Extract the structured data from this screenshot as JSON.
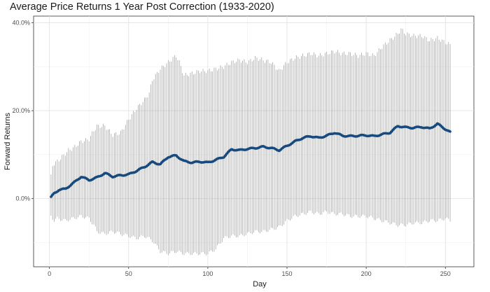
{
  "chart_data": {
    "type": "line",
    "title": "Average Price Returns 1 Year Post Correction (1933-2020)",
    "xlabel": "Day",
    "ylabel": "Forward Returns",
    "xlim": [
      -10,
      268
    ],
    "ylim": [
      -15.5,
      41.5
    ],
    "x_ticks": [
      0,
      50,
      100,
      150,
      200,
      250
    ],
    "y_ticks": [
      {
        "value": 0,
        "label": "0.0%"
      },
      {
        "value": 20,
        "label": "20.0%"
      },
      {
        "value": 40,
        "label": "40.0%"
      }
    ],
    "y_minor_ticks": [
      -10,
      10,
      30
    ],
    "x_minor_ticks": [
      25,
      75,
      125,
      175,
      225
    ],
    "grid": true,
    "days": [
      1,
      253
    ],
    "series": [
      {
        "type": "line",
        "color": "#174a7e",
        "x": [
          1,
          3,
          6,
          10,
          15,
          20,
          25,
          30,
          35,
          40,
          45,
          50,
          55,
          60,
          65,
          70,
          75,
          80,
          85,
          90,
          95,
          100,
          105,
          110,
          115,
          120,
          125,
          130,
          135,
          140,
          145,
          150,
          155,
          160,
          165,
          170,
          175,
          180,
          185,
          190,
          195,
          200,
          205,
          210,
          215,
          220,
          225,
          230,
          235,
          240,
          245,
          250,
          253
        ],
        "y": [
          0.3,
          1.2,
          2.0,
          2.2,
          3.5,
          5.0,
          4.2,
          4.8,
          5.8,
          5.0,
          5.3,
          5.5,
          6.3,
          7.2,
          8.3,
          7.8,
          9.5,
          9.8,
          8.5,
          8.2,
          8.4,
          8.2,
          8.8,
          9.5,
          11.2,
          11.0,
          11.3,
          11.5,
          11.8,
          11.5,
          11.0,
          12.0,
          13.0,
          13.8,
          14.2,
          13.8,
          14.3,
          15.0,
          14.3,
          14.2,
          14.3,
          14.4,
          14.2,
          14.6,
          15.0,
          16.5,
          16.2,
          16.1,
          16.3,
          15.9,
          17.0,
          15.8,
          15.1
        ]
      },
      {
        "type": "errorbar_upper",
        "color": "#9a9a9a",
        "x": [
          1,
          2,
          3,
          5,
          8,
          12,
          15,
          20,
          25,
          28,
          30,
          35,
          40,
          45,
          50,
          55,
          60,
          63,
          65,
          70,
          75,
          80,
          82,
          85,
          90,
          95,
          100,
          105,
          110,
          115,
          120,
          125,
          130,
          135,
          140,
          145,
          150,
          155,
          160,
          165,
          170,
          175,
          180,
          185,
          190,
          195,
          200,
          205,
          210,
          215,
          220,
          222,
          225,
          230,
          235,
          240,
          245,
          250,
          253
        ],
        "y": [
          5,
          7.5,
          8,
          8.5,
          9.5,
          11,
          11.5,
          13,
          13.5,
          15.5,
          16.5,
          16.5,
          14.5,
          15,
          18,
          20.5,
          22.5,
          24,
          27,
          29.5,
          31,
          32.5,
          31,
          28,
          28.5,
          29,
          29,
          29.5,
          30,
          31,
          31.5,
          31,
          32,
          31.5,
          31,
          29,
          31,
          32,
          32.5,
          33,
          32.5,
          33,
          33.5,
          33,
          33,
          32.5,
          33,
          32.5,
          34.5,
          36,
          37.5,
          38.5,
          37.5,
          37,
          37,
          36,
          36.5,
          35.5,
          35
        ]
      },
      {
        "type": "errorbar_lower",
        "color": "#9a9a9a",
        "x": [
          1,
          3,
          5,
          10,
          15,
          20,
          25,
          28,
          30,
          35,
          40,
          45,
          50,
          55,
          60,
          65,
          70,
          75,
          80,
          85,
          90,
          95,
          100,
          105,
          110,
          115,
          120,
          125,
          130,
          135,
          140,
          145,
          150,
          155,
          160,
          165,
          170,
          175,
          180,
          185,
          190,
          195,
          200,
          205,
          210,
          215,
          220,
          225,
          230,
          235,
          240,
          245,
          250,
          253
        ],
        "y": [
          -4,
          -5,
          -4.5,
          -5,
          -4.5,
          -4,
          -4.5,
          -6,
          -7.5,
          -8,
          -7.5,
          -8,
          -8.5,
          -9,
          -8.5,
          -9.5,
          -12,
          -12.5,
          -12,
          -12.5,
          -12.5,
          -12.5,
          -12.5,
          -11.5,
          -9,
          -8.5,
          -8.5,
          -8,
          -7.5,
          -7.5,
          -7,
          -6.5,
          -5,
          -4,
          -3.5,
          -3,
          -3.5,
          -3,
          -3.5,
          -3.5,
          -4,
          -4,
          -4,
          -4.5,
          -5,
          -5.5,
          -6,
          -6,
          -5.5,
          -5.5,
          -5,
          -5,
          -4.5,
          -5
        ]
      }
    ]
  }
}
